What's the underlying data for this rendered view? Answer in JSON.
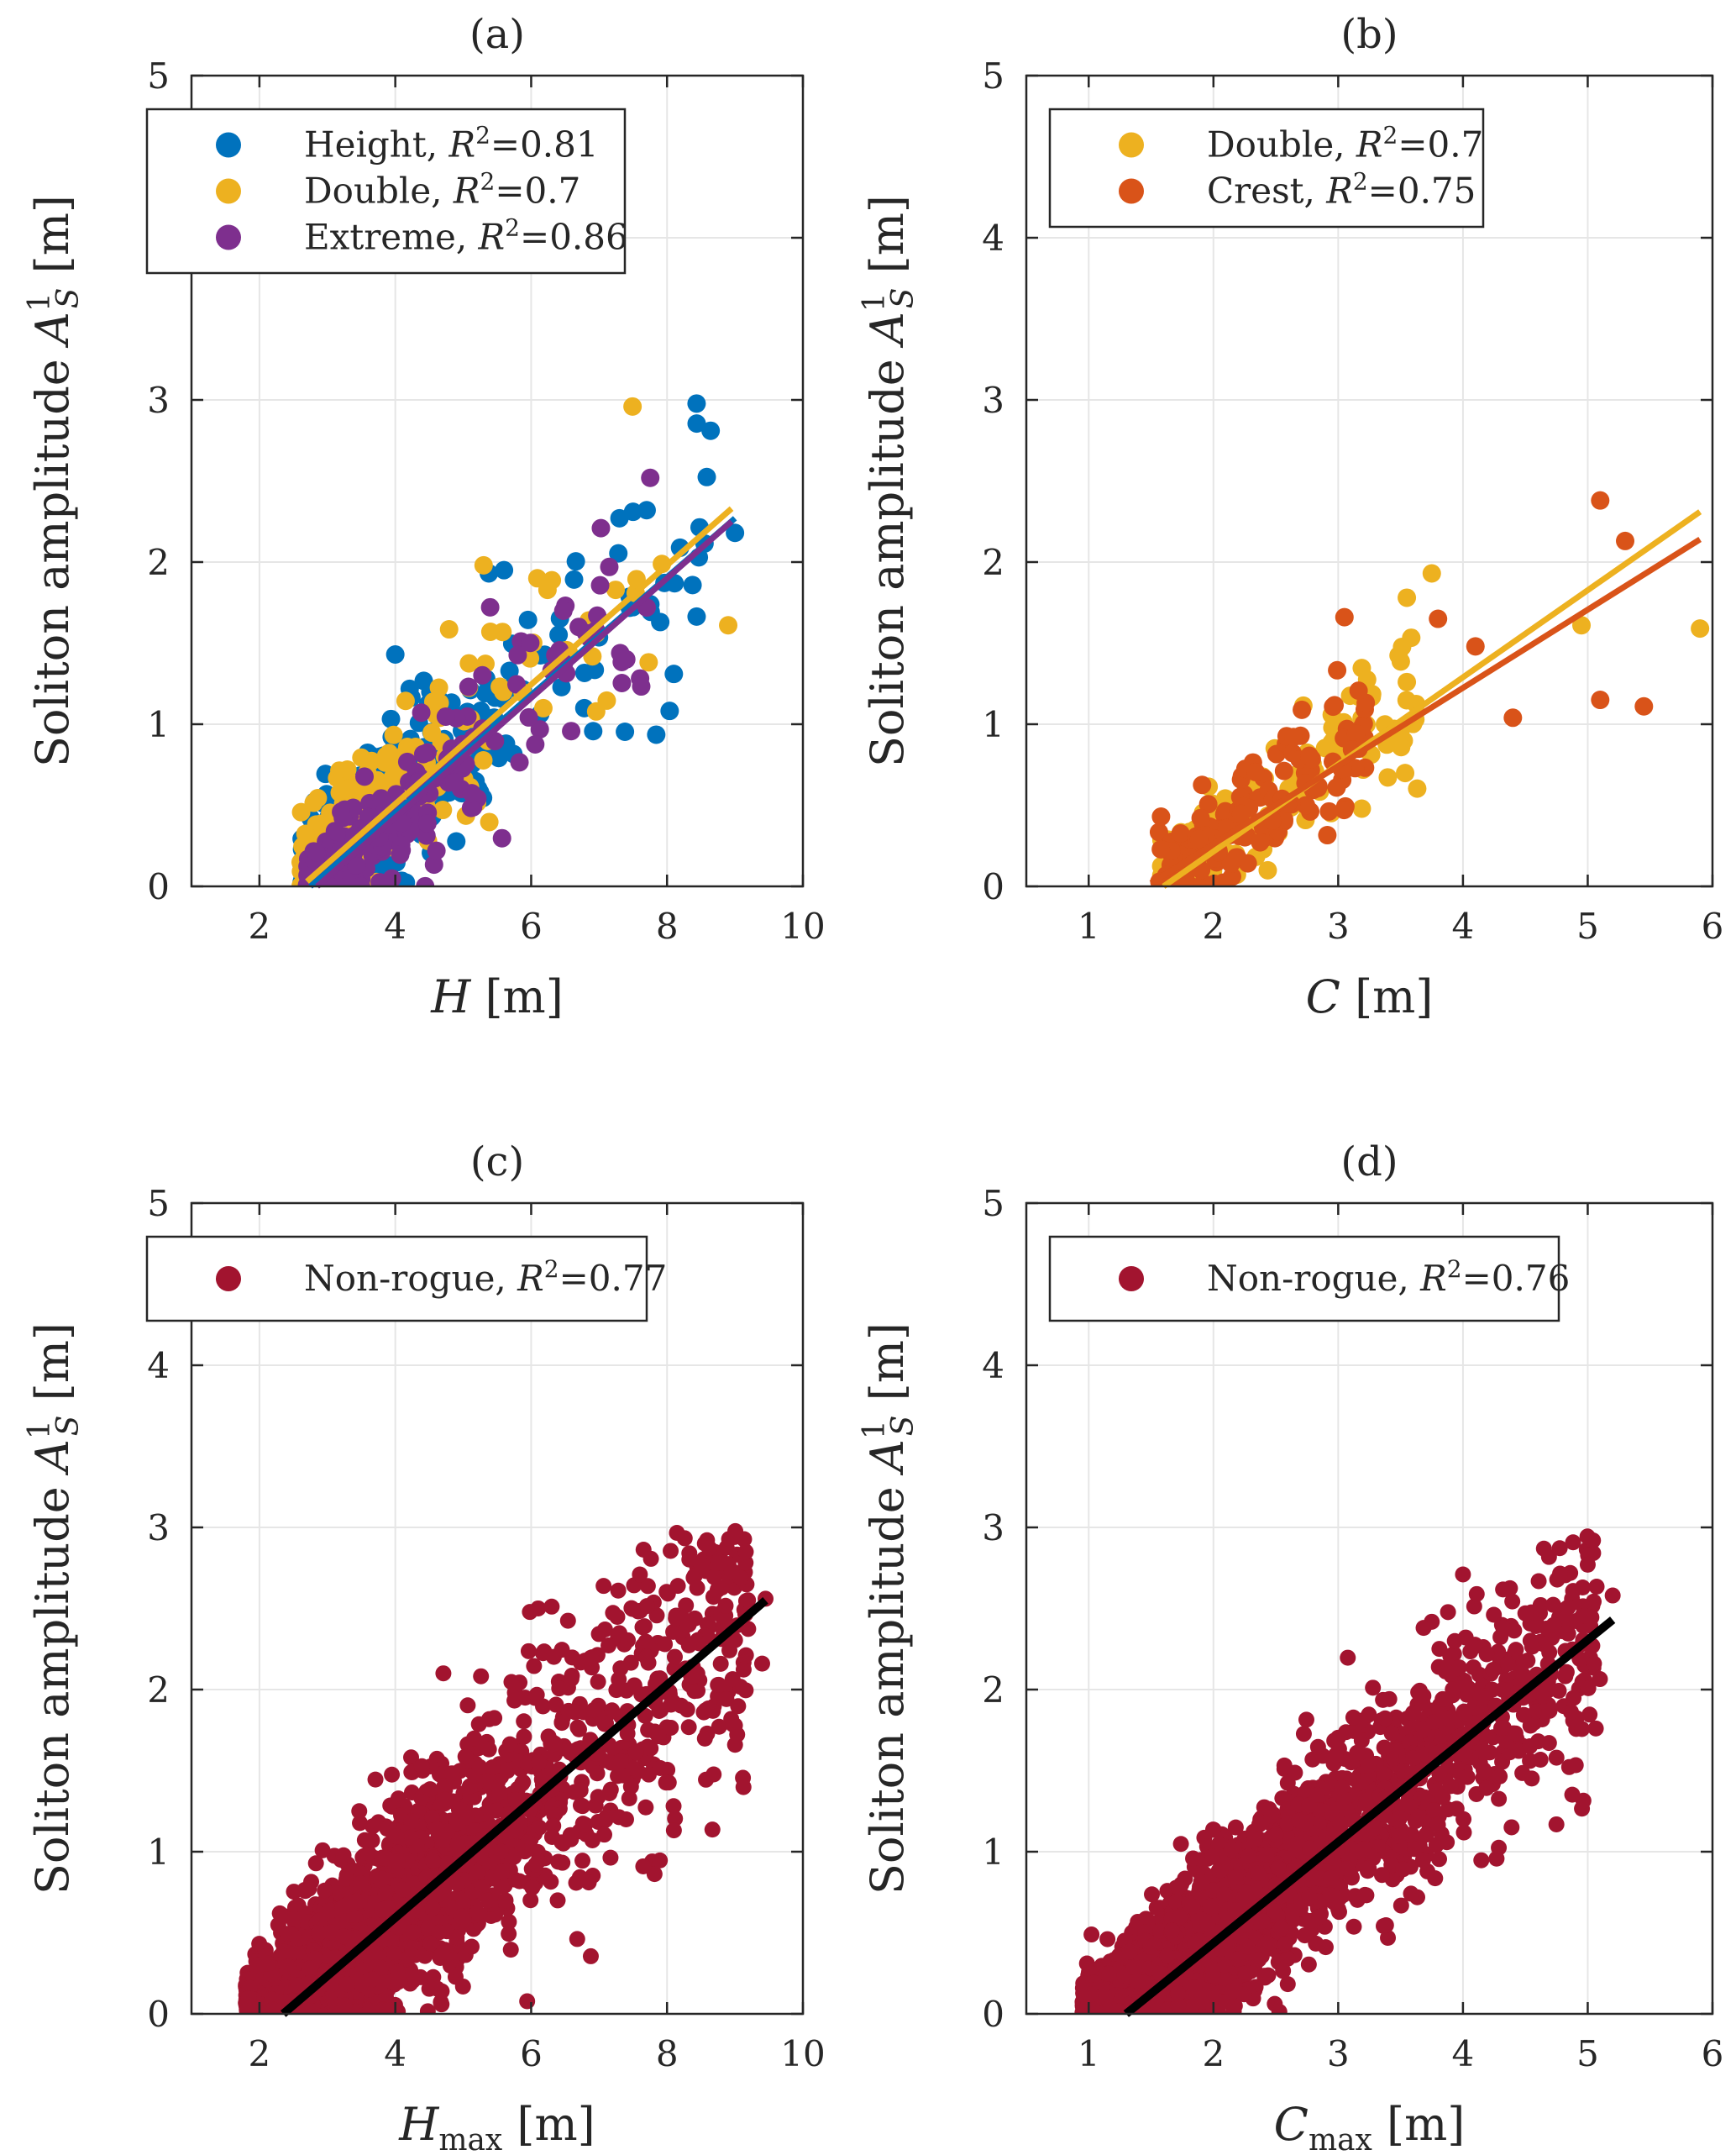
{
  "figure": {
    "background": "#ffffff",
    "grid_color": "#e6e6e6",
    "axis_color": "#262626"
  },
  "chart_data": [
    {
      "type": "scatter",
      "panel_label": "(a)",
      "title": "(a)",
      "xlabel": {
        "var": "H",
        "sub": "",
        "unit": " [m]"
      },
      "ylabel": {
        "prefix": "Soliton amplitude ",
        "var": "A",
        "sup": "1",
        "sub": "S",
        "unit": " [m]"
      },
      "xlim": [
        1,
        10
      ],
      "ylim": [
        0,
        5
      ],
      "xticks": [
        2,
        4,
        6,
        8,
        10
      ],
      "yticks": [
        0,
        1,
        2,
        3,
        4,
        5
      ],
      "grid": true,
      "legend_position": "top-left",
      "series": [
        {
          "name": "Height",
          "r2": "0.81",
          "color": "#0072BD",
          "cloud": {
            "n": 360,
            "seed": 11,
            "x_min": 2.6,
            "x_peak": 3.3,
            "x_max": 9.0,
            "spread": 0.17
          },
          "fit": [
            [
              2.75,
              0.0
            ],
            [
              9.0,
              2.27
            ]
          ],
          "points": [
            [
              9.0,
              2.18
            ],
            [
              8.1,
              1.31
            ],
            [
              7.7,
              2.32
            ],
            [
              7.5,
              2.31
            ],
            [
              7.3,
              2.27
            ],
            [
              5.6,
              1.95
            ],
            [
              4.0,
              1.43
            ],
            [
              7.9,
              1.63
            ]
          ]
        },
        {
          "name": "Double",
          "r2": "0.7",
          "color": "#EDB120",
          "cloud": {
            "n": 240,
            "seed": 23,
            "x_min": 2.6,
            "x_peak": 3.2,
            "x_max": 8.0,
            "spread": 0.16
          },
          "fit": [
            [
              2.7,
              0.03
            ],
            [
              8.95,
              2.33
            ]
          ],
          "points": [
            [
              8.9,
              1.61
            ],
            [
              5.3,
              1.98
            ],
            [
              5.4,
              1.57
            ],
            [
              4.3,
              0.86
            ]
          ]
        },
        {
          "name": "Extreme",
          "r2": "0.86",
          "color": "#7E2F8E",
          "cloud": {
            "n": 220,
            "seed": 37,
            "x_min": 2.7,
            "x_peak": 3.5,
            "x_max": 7.8,
            "spread": 0.13
          },
          "fit": [
            [
              2.85,
              0.0
            ],
            [
              8.95,
              2.25
            ]
          ],
          "points": [
            [
              7.15,
              1.97
            ],
            [
              7.7,
              1.72
            ],
            [
              7.4,
              1.4
            ],
            [
              6.7,
              1.6
            ]
          ]
        }
      ]
    },
    {
      "type": "scatter",
      "panel_label": "(b)",
      "title": "(b)",
      "xlabel": {
        "var": "C",
        "sub": "",
        "unit": " [m]"
      },
      "ylabel": {
        "prefix": "Soliton amplitude ",
        "var": "A",
        "sup": "1",
        "sub": "S",
        "unit": " [m]"
      },
      "xlim": [
        0.5,
        6
      ],
      "ylim": [
        0,
        5
      ],
      "xticks": [
        1,
        2,
        3,
        4,
        5,
        6
      ],
      "yticks": [
        0,
        1,
        2,
        3,
        4,
        5
      ],
      "grid": true,
      "legend_position": "top-left",
      "series": [
        {
          "name": "Double",
          "r2": "0.7",
          "color": "#EDB120",
          "cloud": {
            "n": 150,
            "seed": 53,
            "x_min": 1.55,
            "x_peak": 2.0,
            "x_max": 3.8,
            "spread": 0.14
          },
          "fit": [
            [
              1.6,
              0.0
            ],
            [
              5.9,
              2.31
            ]
          ],
          "points": [
            [
              5.9,
              1.59
            ],
            [
              4.95,
              1.61
            ],
            [
              3.75,
              1.93
            ],
            [
              3.55,
              1.78
            ],
            [
              3.55,
              1.26
            ],
            [
              3.2,
              0.72
            ]
          ]
        },
        {
          "name": "Crest",
          "r2": "0.75",
          "color": "#D95319",
          "cloud": {
            "n": 150,
            "seed": 71,
            "x_min": 1.55,
            "x_peak": 2.0,
            "x_max": 3.4,
            "spread": 0.14
          },
          "fit": [
            [
              1.5,
              0.02
            ],
            [
              5.9,
              2.14
            ]
          ],
          "points": [
            [
              5.1,
              2.38
            ],
            [
              5.3,
              2.13
            ],
            [
              5.1,
              1.15
            ],
            [
              5.45,
              1.11
            ],
            [
              4.4,
              1.04
            ],
            [
              4.1,
              1.48
            ],
            [
              3.8,
              1.65
            ],
            [
              3.05,
              1.66
            ]
          ]
        }
      ]
    },
    {
      "type": "scatter",
      "panel_label": "(c)",
      "title": "(c)",
      "xlabel": {
        "var": "H",
        "sub": "max",
        "unit": " [m]"
      },
      "ylabel": {
        "prefix": "Soliton amplitude ",
        "var": "A",
        "sup": "1",
        "sub": "S",
        "unit": " [m]"
      },
      "xlim": [
        1,
        10
      ],
      "ylim": [
        0,
        5
      ],
      "xticks": [
        2,
        4,
        6,
        8,
        10
      ],
      "yticks": [
        0,
        1,
        2,
        3,
        4,
        5
      ],
      "grid": true,
      "legend_position": "top-left",
      "series": [
        {
          "name": "Non-rogue",
          "r2": "0.77",
          "color": "#A2142F",
          "cloud": {
            "n": 2600,
            "seed": 97,
            "x_min": 1.8,
            "x_peak": 3.2,
            "x_max": 9.2,
            "spread": 0.2
          },
          "fit": [
            [
              2.35,
              0.0
            ],
            [
              9.45,
              2.55
            ]
          ],
          "fit_color": "#000000",
          "points": [
            [
              9.45,
              2.56
            ],
            [
              9.4,
              2.16
            ],
            [
              8.75,
              2.78
            ],
            [
              7.6,
              2.71
            ],
            [
              2.3,
              0.62
            ]
          ]
        }
      ]
    },
    {
      "type": "scatter",
      "panel_label": "(d)",
      "title": "(d)",
      "xlabel": {
        "var": "C",
        "sub": "max",
        "unit": " [m]"
      },
      "ylabel": {
        "prefix": "Soliton amplitude ",
        "var": "A",
        "sup": "1",
        "sub": "S",
        "unit": " [m]"
      },
      "xlim": [
        0.5,
        6
      ],
      "ylim": [
        0,
        5
      ],
      "xticks": [
        1,
        2,
        3,
        4,
        5,
        6
      ],
      "yticks": [
        0,
        1,
        2,
        3,
        4,
        5
      ],
      "grid": true,
      "legend_position": "top-left",
      "series": [
        {
          "name": "Non-rogue",
          "r2": "0.76",
          "color": "#A2142F",
          "cloud": {
            "n": 2600,
            "seed": 131,
            "x_min": 0.95,
            "x_peak": 1.8,
            "x_max": 5.1,
            "spread": 0.2
          },
          "fit": [
            [
              1.3,
              0.0
            ],
            [
              5.2,
              2.43
            ]
          ],
          "fit_color": "#000000",
          "points": [
            [
              5.0,
              2.77
            ],
            [
              5.2,
              2.58
            ],
            [
              5.05,
              2.16
            ],
            [
              4.0,
              2.71
            ],
            [
              4.5,
              2.47
            ]
          ]
        }
      ]
    }
  ]
}
